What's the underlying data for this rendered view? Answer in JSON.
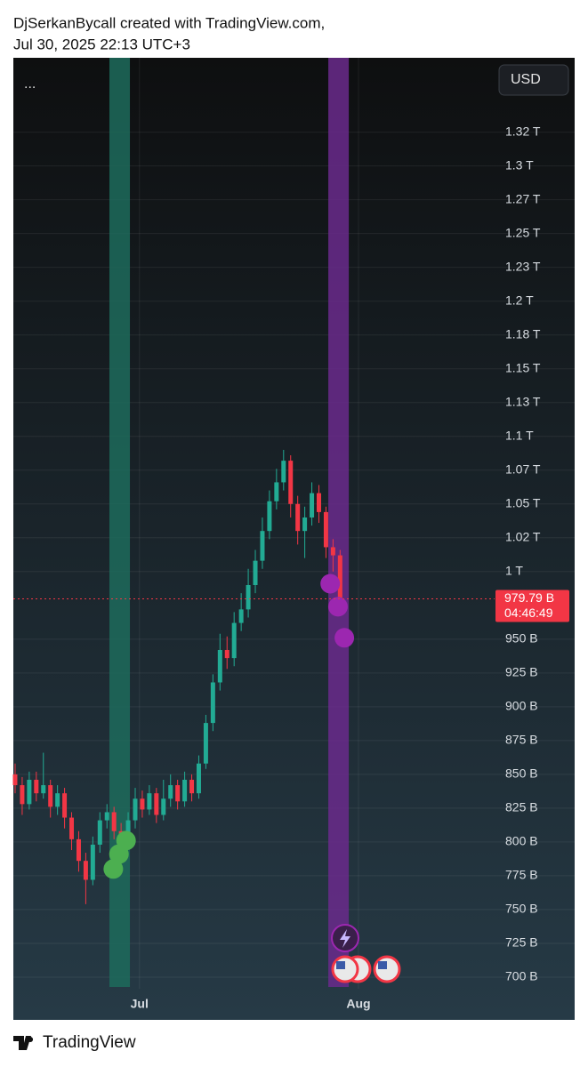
{
  "header": {
    "line1": "DjSerkanBycall created with TradingView.com,",
    "line2": "Jul 30, 2025 22:13 UTC+3"
  },
  "footer": {
    "brand": "TradingView"
  },
  "toolbar": {
    "menu": "...",
    "currency": "USD"
  },
  "chart_data": {
    "type": "candlestick",
    "up_color": "#22ab94",
    "down_color": "#f23645",
    "open": [
      850,
      842,
      828,
      846,
      836,
      842,
      826,
      836,
      818,
      802,
      786,
      772,
      798,
      816,
      822,
      808,
      800,
      816,
      832,
      824,
      836,
      820,
      832,
      842,
      830,
      846,
      836,
      858,
      888,
      918,
      942,
      936,
      962,
      972,
      990,
      1008,
      1030,
      1052,
      1066,
      1082,
      1050,
      1030,
      1040,
      1058,
      1044,
      1018,
      1012
    ],
    "high": [
      858,
      848,
      852,
      852,
      866,
      846,
      842,
      840,
      822,
      808,
      792,
      804,
      822,
      828,
      826,
      814,
      822,
      840,
      838,
      842,
      840,
      846,
      850,
      846,
      852,
      850,
      864,
      894,
      924,
      954,
      952,
      970,
      984,
      1002,
      1016,
      1040,
      1060,
      1076,
      1090,
      1086,
      1056,
      1048,
      1066,
      1064,
      1048,
      1024,
      1016
    ],
    "low": [
      836,
      820,
      824,
      830,
      832,
      818,
      820,
      810,
      794,
      778,
      754,
      768,
      792,
      810,
      802,
      792,
      796,
      810,
      818,
      820,
      814,
      816,
      826,
      824,
      826,
      830,
      832,
      854,
      882,
      912,
      928,
      930,
      956,
      966,
      984,
      1002,
      1024,
      1046,
      1060,
      1040,
      1020,
      1010,
      1034,
      1036,
      1010,
      1000,
      976
    ],
    "close": [
      842,
      828,
      846,
      836,
      842,
      826,
      836,
      818,
      802,
      786,
      772,
      798,
      816,
      822,
      808,
      800,
      816,
      832,
      824,
      836,
      820,
      832,
      842,
      830,
      846,
      836,
      858,
      888,
      918,
      942,
      936,
      962,
      972,
      990,
      1008,
      1030,
      1052,
      1066,
      1082,
      1050,
      1030,
      1040,
      1058,
      1044,
      1018,
      1012,
      979.79
    ],
    "xlim": [
      -0.25,
      79.2
    ],
    "xticks": [
      {
        "value": 17.6,
        "label": "Jul"
      },
      {
        "value": 48.6,
        "label": "Aug"
      }
    ],
    "ylim": [
      668.4,
      1380
    ],
    "yticks": [
      {
        "value": 700,
        "label": "700 B"
      },
      {
        "value": 725,
        "label": "725 B"
      },
      {
        "value": 750,
        "label": "750 B"
      },
      {
        "value": 775,
        "label": "775 B"
      },
      {
        "value": 800,
        "label": "800 B"
      },
      {
        "value": 825,
        "label": "825 B"
      },
      {
        "value": 850,
        "label": "850 B"
      },
      {
        "value": 875,
        "label": "875 B"
      },
      {
        "value": 900,
        "label": "900 B"
      },
      {
        "value": 925,
        "label": "925 B"
      },
      {
        "value": 950,
        "label": "950 B"
      },
      {
        "value": 1000,
        "label": "1 T"
      },
      {
        "value": 1025,
        "label": "1.02 T"
      },
      {
        "value": 1050,
        "label": "1.05 T"
      },
      {
        "value": 1075,
        "label": "1.07 T"
      },
      {
        "value": 1100,
        "label": "1.1 T"
      },
      {
        "value": 1125,
        "label": "1.13 T"
      },
      {
        "value": 1150,
        "label": "1.15 T"
      },
      {
        "value": 1175,
        "label": "1.18 T"
      },
      {
        "value": 1200,
        "label": "1.2 T"
      },
      {
        "value": 1225,
        "label": "1.23 T"
      },
      {
        "value": 1250,
        "label": "1.25 T"
      },
      {
        "value": 1275,
        "label": "1.27 T"
      },
      {
        "value": 1300,
        "label": "1.3 T"
      },
      {
        "value": 1325,
        "label": "1.32 T"
      }
    ],
    "grid": true,
    "highlight_bands": [
      {
        "from": 13.35,
        "to": 16.25,
        "color": "#1d6b5c"
      },
      {
        "from": 44.33,
        "to": 47.23,
        "color": "#6a2a8c"
      }
    ],
    "markers": [
      {
        "color": "#4caf50",
        "x": [
          13.9,
          14.7,
          15.7
        ],
        "values": [
          780,
          791,
          801
        ]
      },
      {
        "color": "#9c27b0",
        "x": [
          44.6,
          45.7,
          46.6
        ],
        "values": [
          991,
          974,
          951
        ]
      }
    ],
    "price_line": {
      "value": 979.79,
      "label": "979.79 B",
      "countdown": "04:46:49",
      "color": "#f23645"
    }
  }
}
